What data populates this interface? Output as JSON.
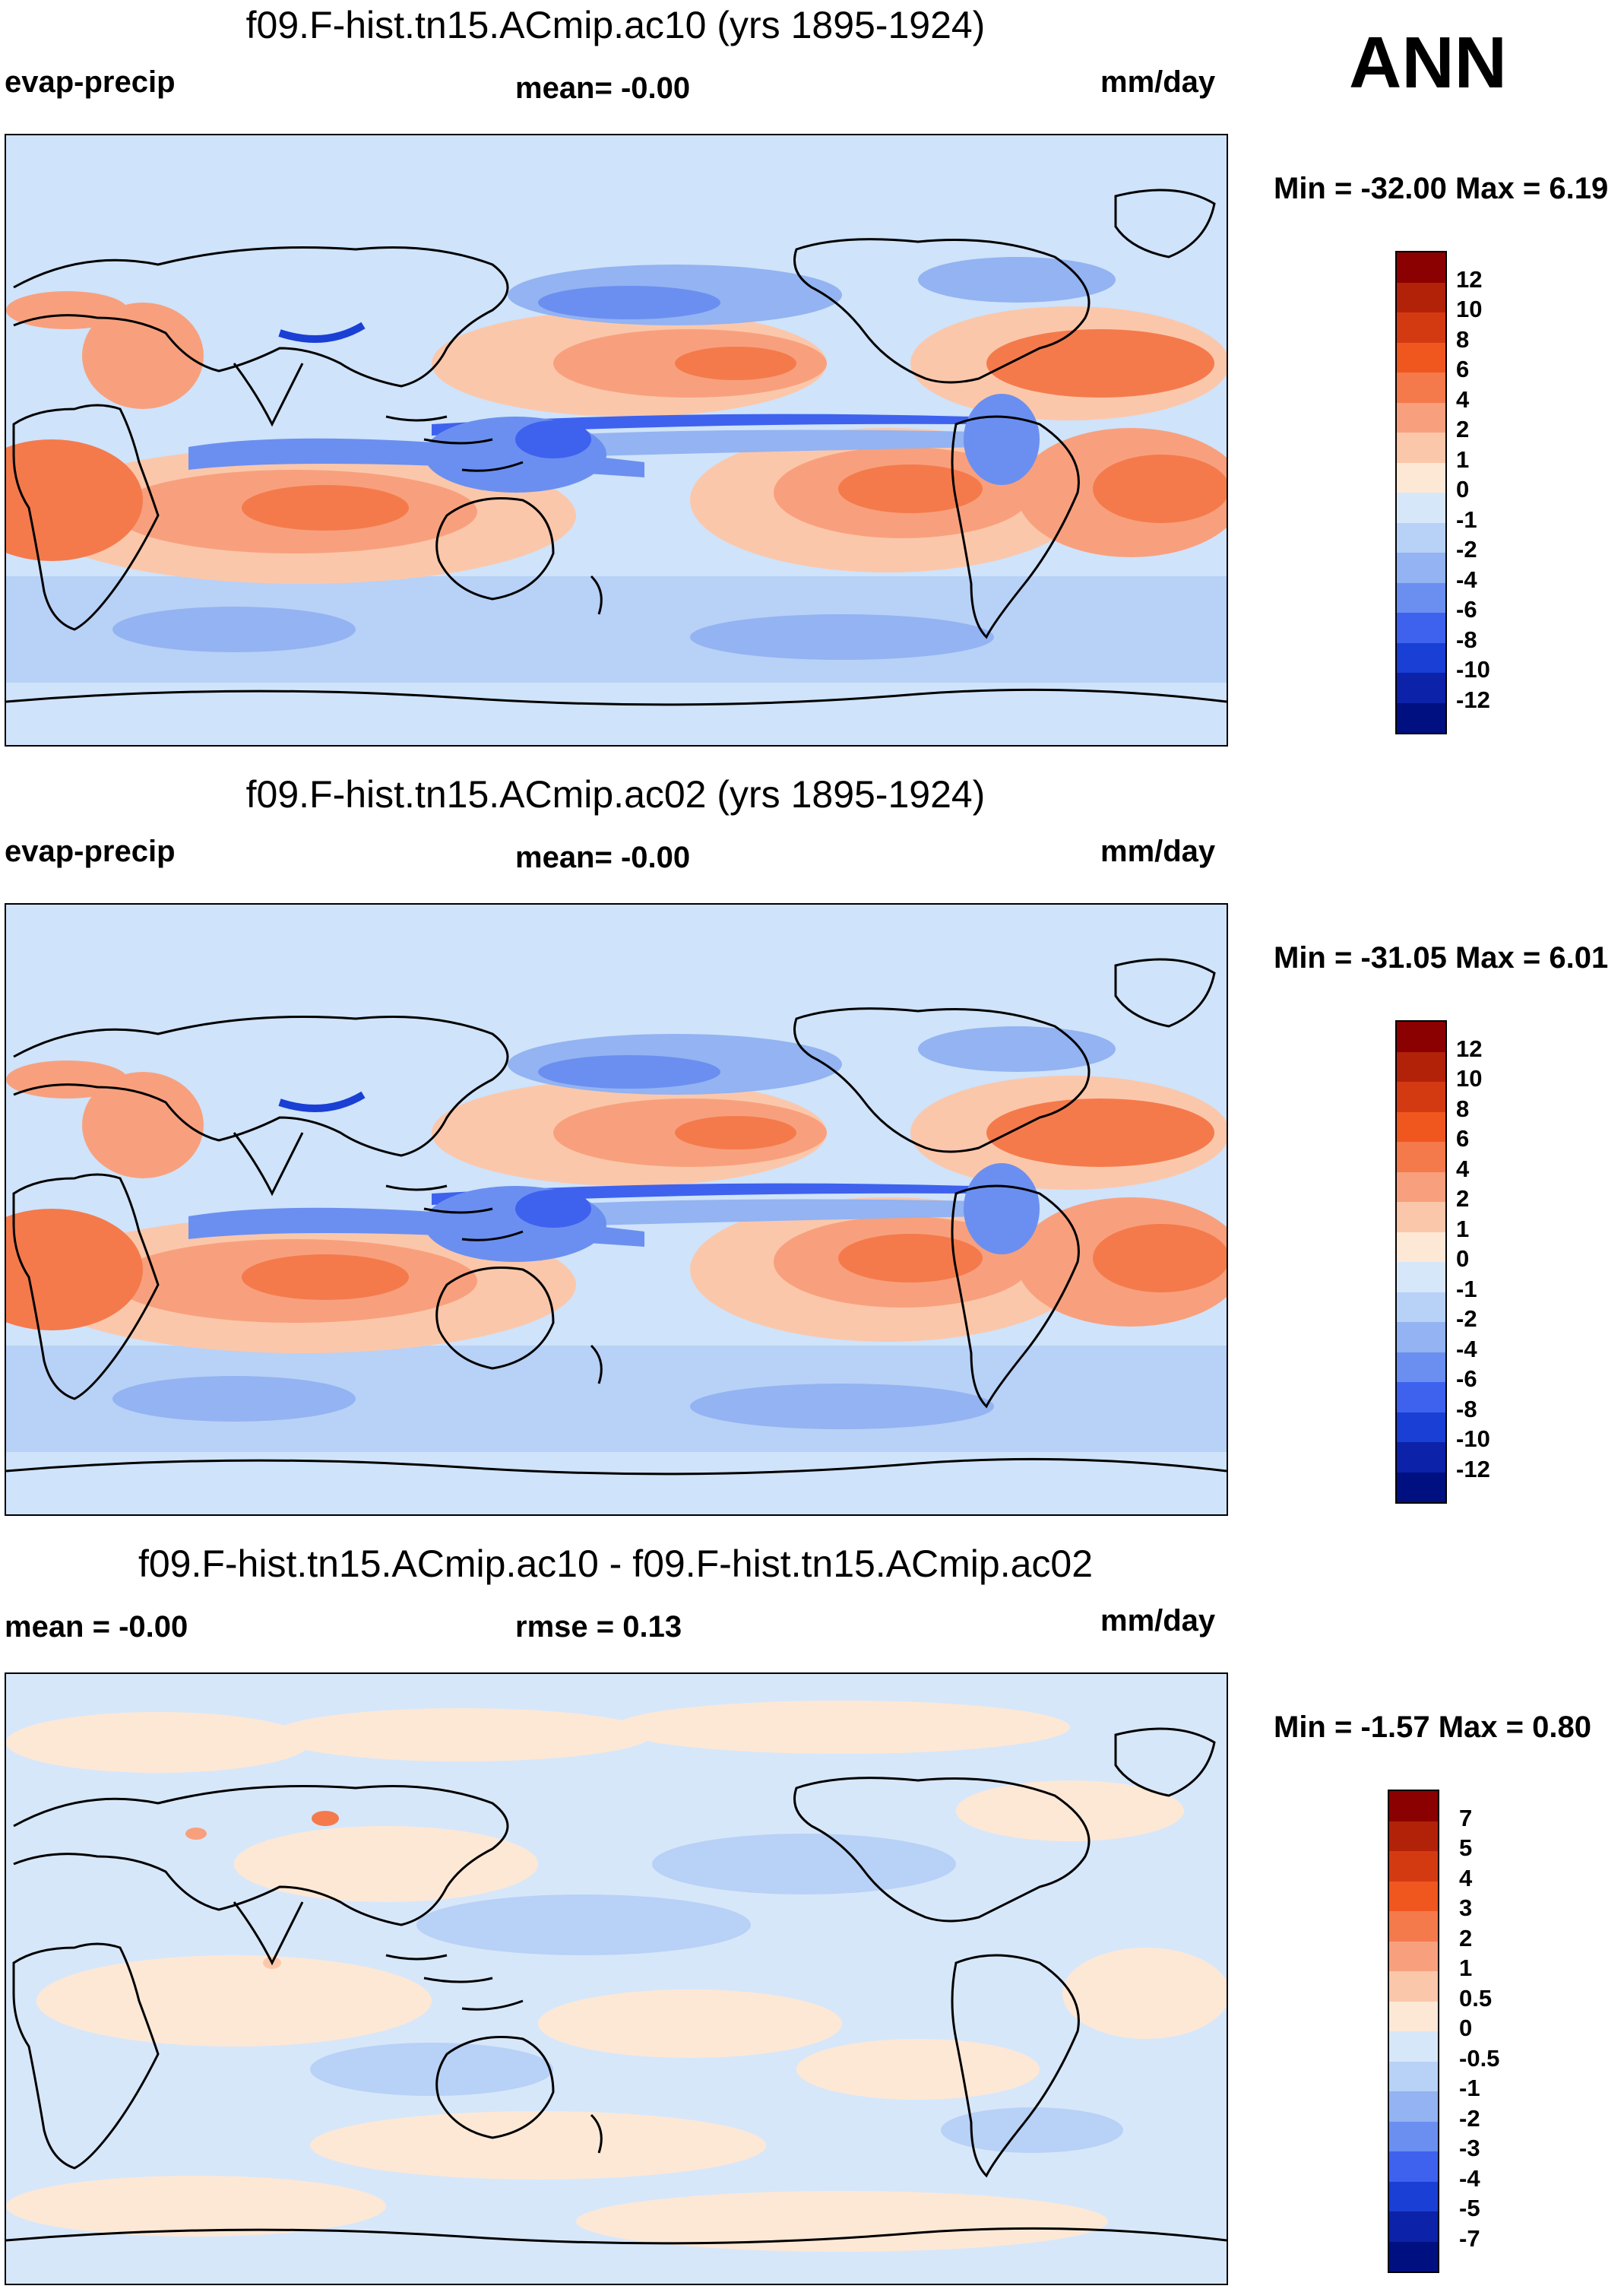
{
  "season": "ANN",
  "panels": [
    {
      "title": "f09.F-hist.tn15.ACmip.ac10 (yrs 1895-1924)",
      "left_label": "evap-precip",
      "center_label": "mean=  -0.00",
      "units": "mm/day",
      "minmax": "Min = -32.00 Max =   6.19",
      "colorbar_labels": [
        "12",
        "10",
        "8",
        "6",
        "4",
        "2",
        "1",
        "0",
        "-1",
        "-2",
        "-4",
        "-6",
        "-8",
        "-10",
        "-12"
      ]
    },
    {
      "title": "f09.F-hist.tn15.ACmip.ac02 (yrs 1895-1924)",
      "left_label": "evap-precip",
      "center_label": "mean=  -0.00",
      "units": "mm/day",
      "minmax": "Min = -31.05 Max =   6.01",
      "colorbar_labels": [
        "12",
        "10",
        "8",
        "6",
        "4",
        "2",
        "1",
        "0",
        "-1",
        "-2",
        "-4",
        "-6",
        "-8",
        "-10",
        "-12"
      ]
    },
    {
      "title": "f09.F-hist.tn15.ACmip.ac10 - f09.F-hist.tn15.ACmip.ac02",
      "left_label": "mean =  -0.00",
      "center_label": "rmse =    0.13",
      "units": "mm/day",
      "minmax": "Min =  -1.57 Max =   0.80",
      "colorbar_labels": [
        "7",
        "5",
        "4",
        "3",
        "2",
        "1",
        "0.5",
        "0",
        "-0.5",
        "-1",
        "-2",
        "-3",
        "-4",
        "-5",
        "-7"
      ]
    }
  ],
  "colors": {
    "scale": [
      "#8b0000",
      "#b22209",
      "#d43a12",
      "#f0571f",
      "#f47a4c",
      "#f8a07d",
      "#fbc7ab",
      "#fde8d6",
      "#d7e7fa",
      "#b8d1f6",
      "#93b3f2",
      "#6b8ff0",
      "#3e62ee",
      "#1a3fd4",
      "#0c22a8",
      "#001080"
    ],
    "land_outline": "#000000",
    "ocean_base": "#cfe3fa"
  }
}
